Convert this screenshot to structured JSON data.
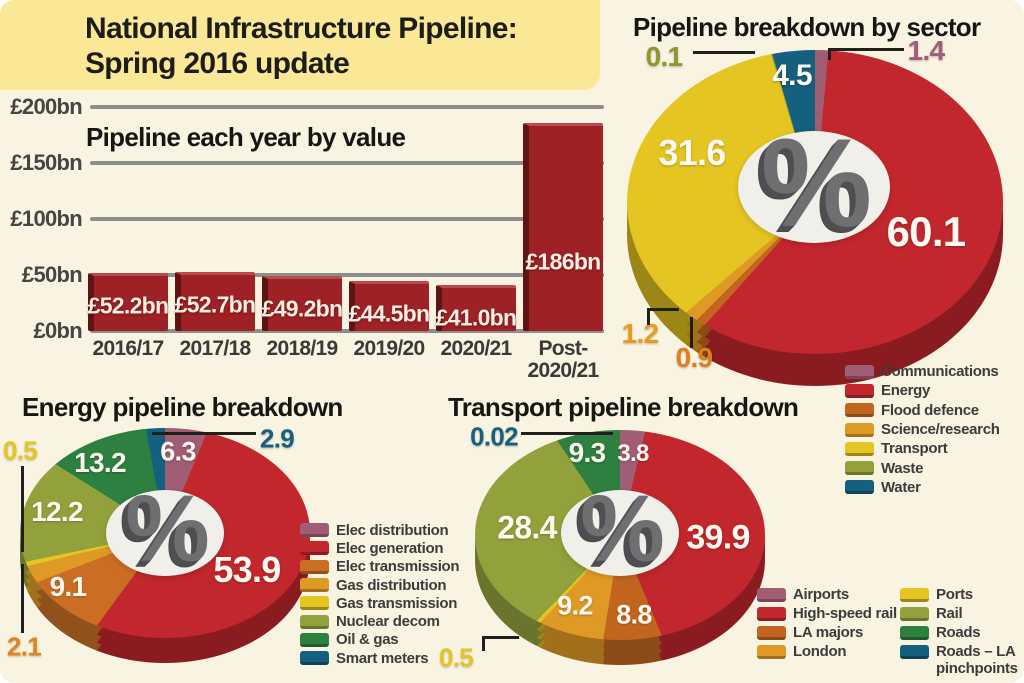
{
  "page": {
    "title": {
      "line1": "National Infrastructure Pipeline:",
      "line2": "Spring 2016 update"
    },
    "colors": {
      "background": "#f9f3e1",
      "title_panel": "#fae896",
      "ink": "#1f1f1d",
      "axis_text": "#454543",
      "gridline": "#8e8e8c",
      "bar_red": "#9e2125",
      "pie_hole": "#f1efe9",
      "percent_glyph": "#6f6f71",
      "callout_line": "#1f1f1d"
    }
  },
  "chart_data": [
    {
      "id": "annual_value_bars",
      "type": "bar",
      "title": "Pipeline each year by value",
      "categories": [
        "2016/17",
        "2017/18",
        "2018/19",
        "2019/20",
        "2020/21",
        "Post- 2020/21"
      ],
      "values": [
        52.2,
        52.7,
        49.2,
        44.5,
        41.0,
        186
      ],
      "bar_labels": [
        "£52.2bn",
        "£52.7bn",
        "£49.2bn",
        "£44.5bn",
        "£41.0bn",
        "£186bn"
      ],
      "y_ticks": [
        "£200bn",
        "£150bn",
        "£100bn",
        "£50bn",
        "£0bn"
      ],
      "ylim": [
        0,
        200
      ],
      "grid": true,
      "bar_color": "#9e2125"
    },
    {
      "id": "sector_pie",
      "type": "pie",
      "title": "Pipeline breakdown by sector",
      "center_symbol": "%",
      "legend_position": "bottom-right",
      "slices": [
        {
          "label": "Communications",
          "value": 1.4,
          "display": "1.4",
          "color": "#a05d73",
          "dark": "#7a4656"
        },
        {
          "label": "Energy",
          "value": 60.1,
          "display": "60.1",
          "color": "#c1272d",
          "dark": "#8a1b20"
        },
        {
          "label": "Flood defence",
          "value": 0.9,
          "display": "0.9",
          "color": "#c2661f",
          "dark": "#8c4a17"
        },
        {
          "label": "Science/research",
          "value": 1.2,
          "display": "1.2",
          "color": "#df9a26",
          "dark": "#a26f1c"
        },
        {
          "label": "Transport",
          "value": 31.6,
          "display": "31.6",
          "color": "#e4c522",
          "dark": "#9c8716"
        },
        {
          "label": "Waste",
          "value": 0.1,
          "display": "0.1",
          "color": "#93a13c",
          "dark": "#6a742c"
        },
        {
          "label": "Water",
          "value": 4.5,
          "display": "4.5",
          "color": "#15607e",
          "dark": "#0e4257"
        }
      ]
    },
    {
      "id": "energy_pie",
      "type": "pie",
      "title": "Energy pipeline breakdown",
      "center_symbol": "%",
      "legend_position": "right",
      "slices": [
        {
          "label": "Elec distribution",
          "value": 6.3,
          "display": "6.3",
          "color": "#a05d73",
          "dark": "#7a4656"
        },
        {
          "label": "Elec generation",
          "value": 53.9,
          "display": "53.9",
          "color": "#c1272d",
          "dark": "#8a1b20"
        },
        {
          "label": "Elec transmission",
          "value": 9.1,
          "display": "9.1",
          "color": "#cb6e24",
          "dark": "#92501a"
        },
        {
          "label": "Gas distribution",
          "value": 2.1,
          "display": "2.1",
          "color": "#df9a26",
          "dark": "#a26f1c"
        },
        {
          "label": "Gas transmission",
          "value": 0.5,
          "display": "0.5",
          "color": "#e4c522",
          "dark": "#9c8716"
        },
        {
          "label": "Nuclear decom",
          "value": 12.2,
          "display": "12.2",
          "color": "#93a13c",
          "dark": "#6a742c"
        },
        {
          "label": "Oil & gas",
          "value": 13.2,
          "display": "13.2",
          "color": "#2d8040",
          "dark": "#205a2d"
        },
        {
          "label": "Smart meters",
          "value": 2.9,
          "display": "2.9",
          "color": "#15607e",
          "dark": "#0e4257"
        }
      ]
    },
    {
      "id": "transport_pie",
      "type": "pie",
      "title": "Transport pipeline breakdown",
      "center_symbol": "%",
      "legend_position": "bottom-right",
      "slices": [
        {
          "label": "Airports",
          "value": 3.8,
          "display": "3.8",
          "color": "#a05d73",
          "dark": "#7a4656"
        },
        {
          "label": "High-speed rail",
          "value": 39.9,
          "display": "39.9",
          "color": "#c1272d",
          "dark": "#8a1b20"
        },
        {
          "label": "LA majors",
          "value": 8.8,
          "display": "8.8",
          "color": "#c2661f",
          "dark": "#8c4a17"
        },
        {
          "label": "London",
          "value": 9.2,
          "display": "9.2",
          "color": "#df9a26",
          "dark": "#a26f1c"
        },
        {
          "label": "Ports",
          "value": 0.5,
          "display": "0.5",
          "color": "#e4c522",
          "dark": "#9c8716"
        },
        {
          "label": "Rail",
          "value": 28.4,
          "display": "28.4",
          "color": "#93a13c",
          "dark": "#6a742c"
        },
        {
          "label": "Roads",
          "value": 9.3,
          "display": "9.3",
          "color": "#2d8040",
          "dark": "#205a2d"
        },
        {
          "label": "Roads – LA pinchpoints",
          "value": 0.02,
          "display": "0.02",
          "color": "#15607e",
          "dark": "#0e4257"
        }
      ]
    }
  ]
}
